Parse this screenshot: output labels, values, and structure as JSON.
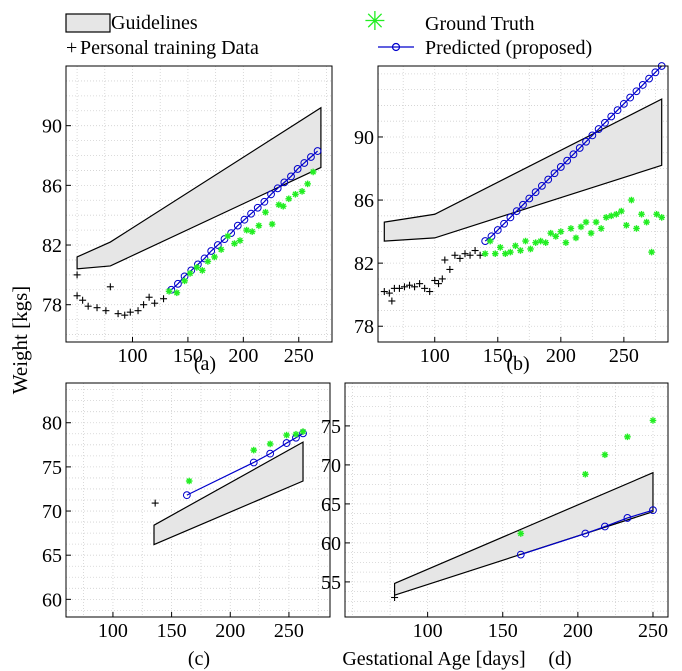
{
  "legend": {
    "guidelines": "Guidelines",
    "personal": "Personal training Data",
    "ground_truth": "Ground Truth",
    "predicted": "Predicted (proposed)"
  },
  "axes": {
    "ylabel": "Weight [kgs]",
    "xlabel": "Gestational Age [days]"
  },
  "colors": {
    "band_fill": "#e6e6e6",
    "band_stroke": "#000000",
    "ground_truth": "#22ee22",
    "predicted": "#0000cc",
    "personal": "#000000",
    "grid": "#d0d0d0"
  },
  "chart_data": [
    {
      "panel": "(a)",
      "type": "line",
      "xlim": [
        40,
        280
      ],
      "ylim": [
        75.5,
        94.0
      ],
      "xticks": [
        100,
        150,
        200,
        250
      ],
      "yticks": [
        78,
        82,
        86,
        90
      ],
      "grid": true,
      "guideline_upper": [
        [
          50,
          81.2
        ],
        [
          80,
          82.2
        ],
        [
          270,
          91.2
        ]
      ],
      "guideline_lower": [
        [
          50,
          80.4
        ],
        [
          80,
          80.6
        ],
        [
          270,
          87.2
        ]
      ],
      "personal_data": [
        [
          50,
          80.0
        ],
        [
          50,
          78.6
        ],
        [
          55,
          78.3
        ],
        [
          60,
          77.9
        ],
        [
          68,
          77.8
        ],
        [
          76,
          77.6
        ],
        [
          80,
          79.2
        ],
        [
          87,
          77.4
        ],
        [
          93,
          77.3
        ],
        [
          98,
          77.5
        ],
        [
          105,
          77.6
        ],
        [
          110,
          78.0
        ],
        [
          115,
          78.5
        ],
        [
          120,
          78.1
        ],
        [
          128,
          78.4
        ]
      ],
      "ground_truth": [
        [
          133,
          78.9
        ],
        [
          140,
          78.8
        ],
        [
          147,
          79.6
        ],
        [
          152,
          80.1
        ],
        [
          158,
          80.5
        ],
        [
          163,
          80.3
        ],
        [
          168,
          80.9
        ],
        [
          174,
          81.2
        ],
        [
          180,
          81.7
        ],
        [
          186,
          82.6
        ],
        [
          192,
          82.1
        ],
        [
          197,
          82.3
        ],
        [
          203,
          83.0
        ],
        [
          208,
          82.9
        ],
        [
          214,
          83.3
        ],
        [
          220,
          84.2
        ],
        [
          226,
          83.4
        ],
        [
          232,
          84.7
        ],
        [
          236,
          84.6
        ],
        [
          241,
          85.1
        ],
        [
          247,
          85.4
        ],
        [
          253,
          85.6
        ],
        [
          258,
          86.1
        ],
        [
          263,
          86.9
        ]
      ],
      "predicted": [
        [
          135,
          79.0
        ],
        [
          141,
          79.4
        ],
        [
          147,
          79.9
        ],
        [
          153,
          80.3
        ],
        [
          159,
          80.7
        ],
        [
          165,
          81.1
        ],
        [
          171,
          81.6
        ],
        [
          177,
          82.0
        ],
        [
          183,
          82.4
        ],
        [
          189,
          82.8
        ],
        [
          195,
          83.3
        ],
        [
          201,
          83.7
        ],
        [
          207,
          84.1
        ],
        [
          213,
          84.5
        ],
        [
          219,
          84.9
        ],
        [
          225,
          85.4
        ],
        [
          231,
          85.8
        ],
        [
          237,
          86.2
        ],
        [
          243,
          86.6
        ],
        [
          249,
          87.1
        ],
        [
          255,
          87.5
        ],
        [
          261,
          87.9
        ],
        [
          267,
          88.3
        ]
      ]
    },
    {
      "panel": "(b)",
      "type": "line",
      "xlim": [
        55,
        285
      ],
      "ylim": [
        77.0,
        94.5
      ],
      "xticks": [
        100,
        150,
        200,
        250
      ],
      "yticks": [
        78,
        82,
        86,
        90
      ],
      "grid": true,
      "guideline_upper": [
        [
          60,
          84.6
        ],
        [
          100,
          85.1
        ],
        [
          280,
          92.4
        ]
      ],
      "guideline_lower": [
        [
          60,
          83.4
        ],
        [
          100,
          83.6
        ],
        [
          280,
          88.2
        ]
      ],
      "personal_data": [
        [
          60,
          80.2
        ],
        [
          64,
          80.1
        ],
        [
          66,
          79.6
        ],
        [
          68,
          80.4
        ],
        [
          72,
          80.4
        ],
        [
          76,
          80.5
        ],
        [
          80,
          80.6
        ],
        [
          84,
          80.5
        ],
        [
          88,
          80.7
        ],
        [
          92,
          80.4
        ],
        [
          96,
          80.2
        ],
        [
          100,
          80.9
        ],
        [
          103,
          80.7
        ],
        [
          106,
          81.0
        ],
        [
          108,
          82.2
        ],
        [
          112,
          81.6
        ],
        [
          116,
          82.5
        ],
        [
          120,
          82.3
        ],
        [
          124,
          82.6
        ],
        [
          128,
          82.5
        ],
        [
          132,
          82.8
        ],
        [
          136,
          82.5
        ]
      ],
      "ground_truth": [
        [
          140,
          82.6
        ],
        [
          144,
          83.4
        ],
        [
          148,
          82.6
        ],
        [
          152,
          83.0
        ],
        [
          156,
          82.6
        ],
        [
          160,
          82.7
        ],
        [
          164,
          83.1
        ],
        [
          168,
          82.8
        ],
        [
          172,
          83.4
        ],
        [
          176,
          82.9
        ],
        [
          180,
          83.3
        ],
        [
          184,
          83.4
        ],
        [
          188,
          83.3
        ],
        [
          192,
          83.9
        ],
        [
          196,
          83.7
        ],
        [
          200,
          84.0
        ],
        [
          204,
          83.3
        ],
        [
          208,
          84.2
        ],
        [
          212,
          83.6
        ],
        [
          216,
          84.3
        ],
        [
          220,
          84.6
        ],
        [
          224,
          83.9
        ],
        [
          228,
          84.6
        ],
        [
          232,
          84.2
        ],
        [
          236,
          84.9
        ],
        [
          240,
          85.0
        ],
        [
          244,
          85.1
        ],
        [
          248,
          85.3
        ],
        [
          252,
          84.4
        ],
        [
          256,
          86.0
        ],
        [
          260,
          84.2
        ],
        [
          264,
          85.1
        ],
        [
          268,
          84.6
        ],
        [
          272,
          82.7
        ],
        [
          276,
          85.1
        ],
        [
          280,
          84.9
        ]
      ],
      "predicted": [
        [
          140,
          83.4
        ],
        [
          145,
          83.7
        ],
        [
          150,
          84.1
        ],
        [
          155,
          84.5
        ],
        [
          160,
          84.9
        ],
        [
          165,
          85.3
        ],
        [
          170,
          85.7
        ],
        [
          175,
          86.1
        ],
        [
          180,
          86.5
        ],
        [
          185,
          86.9
        ],
        [
          190,
          87.3
        ],
        [
          195,
          87.7
        ],
        [
          200,
          88.1
        ],
        [
          205,
          88.5
        ],
        [
          210,
          88.9
        ],
        [
          215,
          89.3
        ],
        [
          220,
          89.7
        ],
        [
          225,
          90.1
        ],
        [
          230,
          90.5
        ],
        [
          235,
          90.9
        ],
        [
          240,
          91.3
        ],
        [
          245,
          91.7
        ],
        [
          250,
          92.1
        ],
        [
          255,
          92.5
        ],
        [
          260,
          92.9
        ],
        [
          265,
          93.3
        ],
        [
          270,
          93.7
        ],
        [
          275,
          94.1
        ],
        [
          280,
          94.5
        ]
      ]
    },
    {
      "panel": "(c)",
      "type": "line",
      "xlim": [
        60,
        285
      ],
      "ylim": [
        58.0,
        84.5
      ],
      "xticks": [
        100,
        150,
        200,
        250
      ],
      "yticks": [
        60,
        65,
        70,
        75,
        80
      ],
      "grid": true,
      "guideline_upper": [
        [
          135,
          68.4
        ],
        [
          262,
          77.8
        ]
      ],
      "guideline_lower": [
        [
          135,
          66.2
        ],
        [
          262,
          73.4
        ]
      ],
      "personal_data": [
        [
          136,
          70.9
        ]
      ],
      "ground_truth": [
        [
          165,
          73.4
        ],
        [
          220,
          76.9
        ],
        [
          234,
          77.6
        ],
        [
          248,
          78.6
        ],
        [
          256,
          78.7
        ],
        [
          262,
          79.0
        ]
      ],
      "predicted": [
        [
          163,
          71.8
        ],
        [
          220,
          75.5
        ],
        [
          234,
          76.5
        ],
        [
          248,
          77.7
        ],
        [
          256,
          78.3
        ],
        [
          262,
          78.8
        ]
      ]
    },
    {
      "panel": "(d)",
      "type": "line",
      "xlim": [
        45,
        260
      ],
      "ylim": [
        50.5,
        80.5
      ],
      "xticks": [
        100,
        150,
        200,
        250
      ],
      "yticks": [
        55,
        60,
        65,
        70,
        75
      ],
      "grid": true,
      "guideline_upper": [
        [
          78,
          54.8
        ],
        [
          250,
          69.0
        ]
      ],
      "guideline_lower": [
        [
          78,
          53.3
        ],
        [
          250,
          64.0
        ]
      ],
      "personal_data": [
        [
          78,
          53.0
        ]
      ],
      "ground_truth": [
        [
          162,
          61.2
        ],
        [
          205,
          68.8
        ],
        [
          218,
          71.3
        ],
        [
          233,
          73.6
        ],
        [
          250,
          75.7
        ]
      ],
      "predicted": [
        [
          162,
          58.5
        ],
        [
          205,
          61.2
        ],
        [
          218,
          62.1
        ],
        [
          233,
          63.2
        ],
        [
          250,
          64.2
        ]
      ]
    }
  ],
  "panel_captions": [
    "(a)",
    "(b)",
    "(c)",
    "(d)"
  ]
}
